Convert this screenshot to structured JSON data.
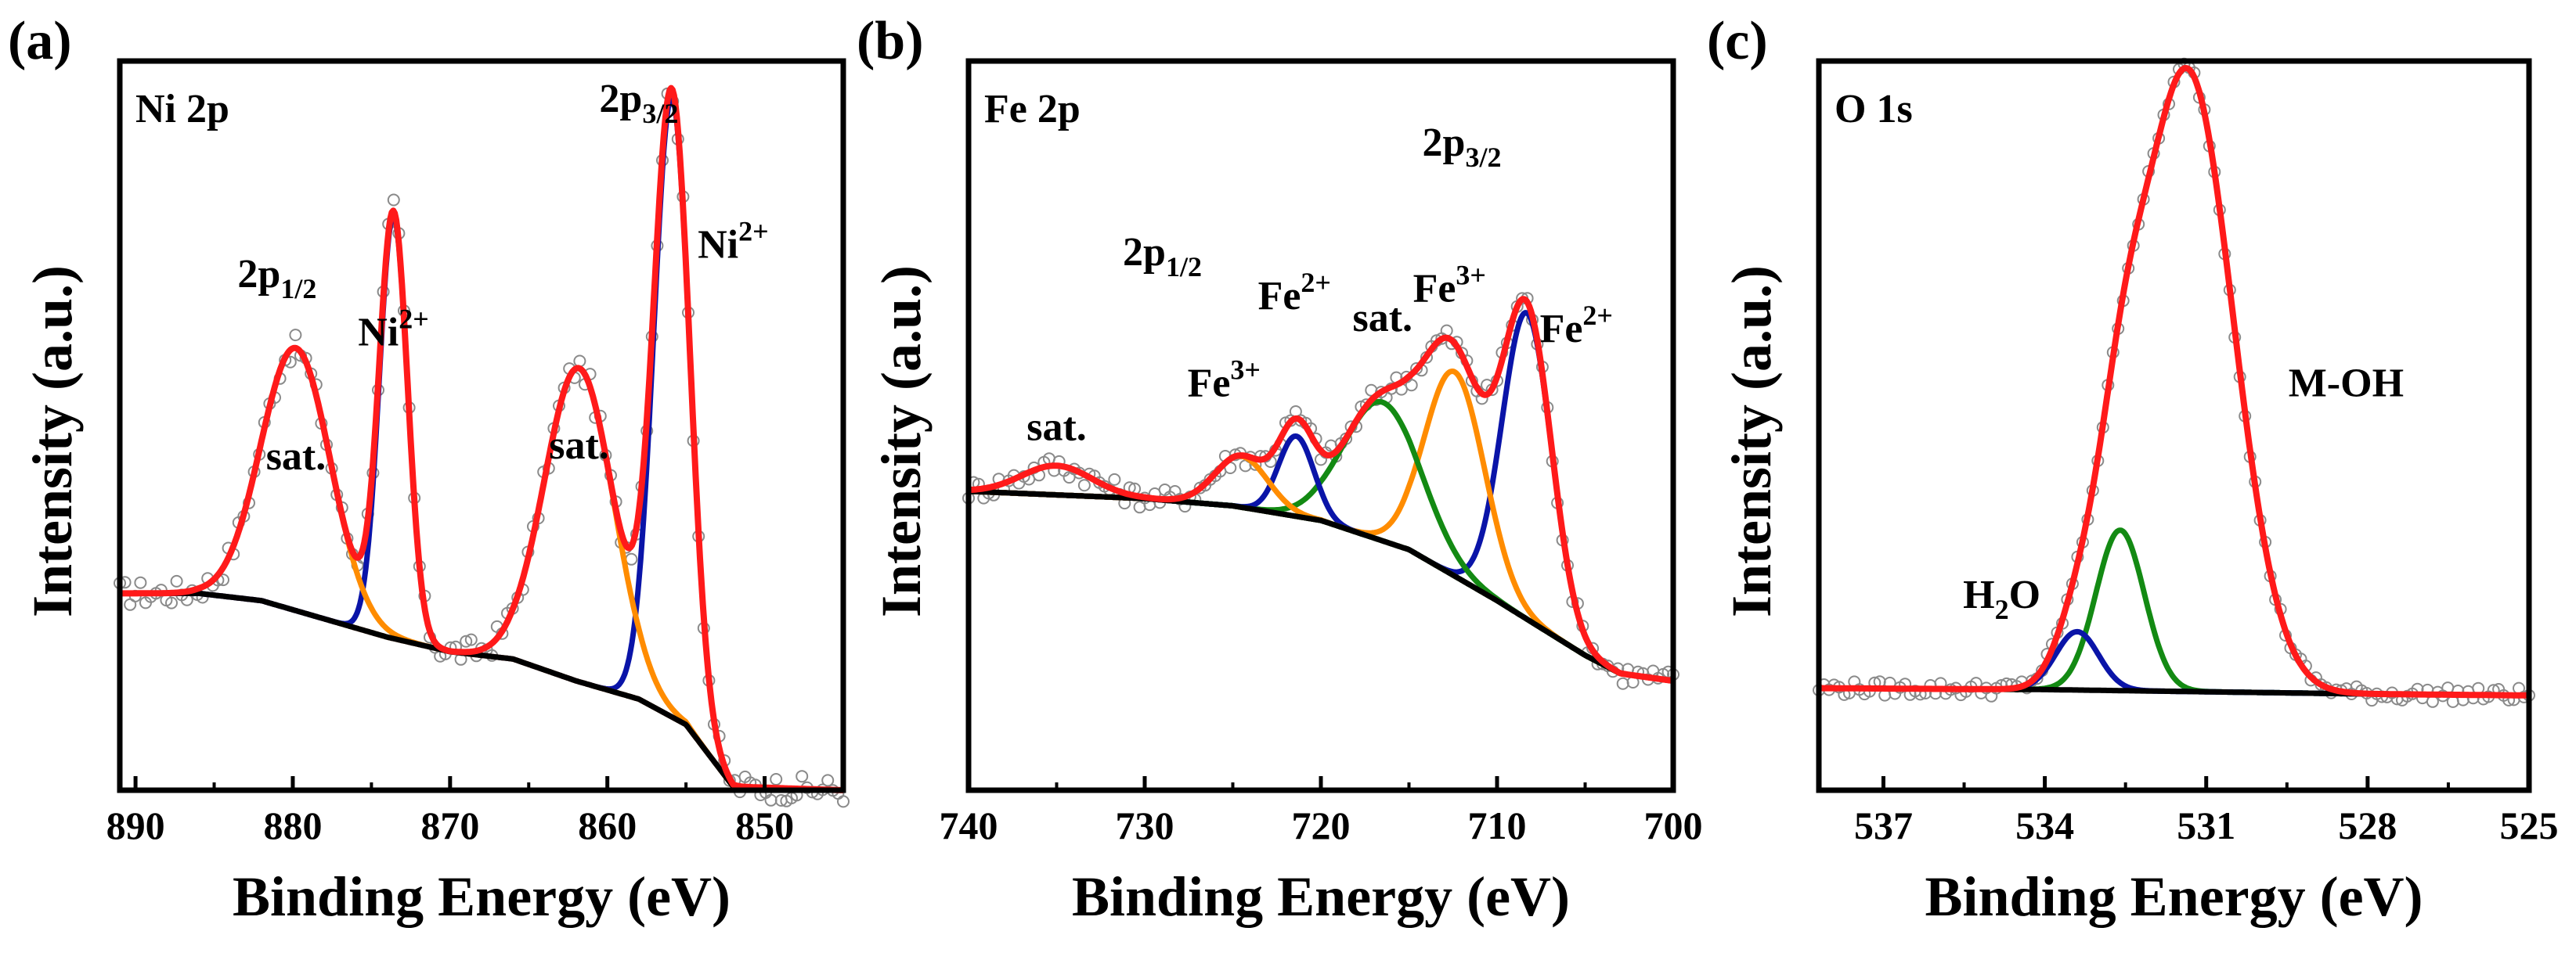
{
  "figure": {
    "description_hidden": false
  },
  "colors": {
    "raw": "#8a8a8a",
    "envelope": "#ff1a1a",
    "background": "#000000",
    "blue": "#0a14a8",
    "orange": "#ff8c00",
    "green": "#138a13"
  },
  "chart_data": [
    {
      "type": "line",
      "panel_label": "(a)",
      "element_label": "Ni 2p",
      "xlabel": "Binding Energy (eV)",
      "ylabel": "Intensity (a.u.)",
      "xlim": [
        891,
        845
      ],
      "ylim": [
        0,
        100
      ],
      "xticks": [
        890,
        880,
        870,
        860,
        850
      ],
      "xtick_labels": [
        "890",
        "880",
        "870",
        "860",
        "850"
      ],
      "background": [
        [
          891,
          27
        ],
        [
          886,
          27
        ],
        [
          882,
          26
        ],
        [
          878,
          23.5
        ],
        [
          874,
          21
        ],
        [
          870,
          19
        ],
        [
          866,
          18
        ],
        [
          862,
          15
        ],
        [
          858,
          12.5
        ],
        [
          855,
          9
        ],
        [
          852,
          0.5
        ],
        [
          845,
          0
        ]
      ],
      "peaks": [
        {
          "name": "Ni2+ 2p3/2",
          "center": 855.9,
          "height": 85,
          "sigma": 1.15,
          "color": "blue"
        },
        {
          "name": "sat. 2p3/2",
          "center": 861.8,
          "height": 43,
          "sigma": 2.2,
          "color": "orange"
        },
        {
          "name": "Ni2+ 2p1/2",
          "center": 873.6,
          "height": 58,
          "sigma": 0.9,
          "color": "blue"
        },
        {
          "name": "sat. 2p1/2",
          "center": 879.8,
          "height": 36,
          "sigma": 2.2,
          "color": "orange"
        }
      ],
      "noise": 1.8,
      "annotations": [
        {
          "text": "2p",
          "sub": "1/2",
          "x": 881,
          "y": 69
        },
        {
          "text": "Ni",
          "sup": "2+",
          "x": 873.6,
          "y": 61
        },
        {
          "text": "sat.",
          "x": 879.8,
          "y": 44
        },
        {
          "text": "2p",
          "sub": "3/2",
          "x": 858,
          "y": 93
        },
        {
          "text": "Ni",
          "sup": "2+",
          "x": 852,
          "y": 73
        },
        {
          "text": "sat.",
          "x": 861.8,
          "y": 45.5
        }
      ]
    },
    {
      "type": "line",
      "panel_label": "(b)",
      "element_label": "Fe 2p",
      "xlabel": "Binding Energy (eV)",
      "ylabel": "Intensity (a.u.)",
      "xlim": [
        740,
        700
      ],
      "ylim": [
        0,
        100
      ],
      "xticks": [
        740,
        730,
        720,
        710,
        700
      ],
      "xtick_labels": [
        "740",
        "730",
        "720",
        "710",
        "700"
      ],
      "background": [
        [
          740,
          41
        ],
        [
          735,
          40.5
        ],
        [
          730,
          40
        ],
        [
          725,
          39
        ],
        [
          720,
          37
        ],
        [
          715,
          33
        ],
        [
          710,
          26
        ],
        [
          705,
          18.5
        ],
        [
          703,
          16
        ],
        [
          700,
          15
        ]
      ],
      "peaks": [
        {
          "name": "Fe2+ 2p3/2",
          "center": 708.3,
          "height": 42,
          "sigma": 1.4,
          "color": "blue"
        },
        {
          "name": "Fe3+ 2p3/2",
          "center": 712.4,
          "height": 28,
          "sigma": 1.7,
          "color": "orange"
        },
        {
          "name": "sat. 2p3/2",
          "center": 716.5,
          "height": 19,
          "sigma": 2.2,
          "color": "green"
        },
        {
          "name": "Fe2+ 2p1/2",
          "center": 721.4,
          "height": 11,
          "sigma": 1.0,
          "color": "blue"
        },
        {
          "name": "Fe3+ 2p1/2",
          "center": 724.5,
          "height": 7,
          "sigma": 1.5,
          "color": "orange"
        },
        {
          "name": "sat. 2p1/2",
          "center": 735.0,
          "height": 4,
          "sigma": 2.0,
          "color": "green"
        }
      ],
      "noise": 1.5,
      "annotations": [
        {
          "text": "2p",
          "sub": "3/2",
          "x": 712,
          "y": 87
        },
        {
          "text": "2p",
          "sub": "1/2",
          "x": 729,
          "y": 72
        },
        {
          "text": "sat.",
          "x": 735,
          "y": 48
        },
        {
          "text": "Fe",
          "sup": "3+",
          "x": 725.5,
          "y": 54
        },
        {
          "text": "Fe",
          "sup": "2+",
          "x": 721.5,
          "y": 66
        },
        {
          "text": "sat.",
          "x": 716.5,
          "y": 63
        },
        {
          "text": "Fe",
          "sup": "3+",
          "x": 712.7,
          "y": 67
        },
        {
          "text": "Fe",
          "sup": "2+",
          "x": 705.5,
          "y": 61.5
        }
      ]
    },
    {
      "type": "line",
      "panel_label": "(c)",
      "element_label": "O 1s",
      "xlabel": "Binding Energy (eV)",
      "ylabel": "Intensity (a.u.)",
      "xlim": [
        538.2,
        525
      ],
      "ylim": [
        0,
        100
      ],
      "xticks": [
        537,
        534,
        531,
        528,
        525
      ],
      "xtick_labels": [
        "537",
        "534",
        "531",
        "528",
        "525"
      ],
      "background": [
        [
          538.2,
          14
        ],
        [
          534,
          13.8
        ],
        [
          531,
          13.5
        ],
        [
          528,
          13.2
        ],
        [
          525,
          13
        ]
      ],
      "peaks": [
        {
          "name": "M-OH",
          "center": 531.35,
          "height": 85,
          "sigma": 0.85,
          "color": "envelope"
        },
        {
          "name": "green",
          "center": 532.6,
          "height": 22,
          "sigma": 0.45,
          "color": "green"
        },
        {
          "name": "H2O",
          "center": 533.4,
          "height": 8,
          "sigma": 0.4,
          "color": "blue"
        }
      ],
      "noise": 1.0,
      "annotations": [
        {
          "text": "H",
          "sub": "2",
          "tail": "O",
          "x": 534.8,
          "y": 25
        },
        {
          "text": "M-OH",
          "x": 528.4,
          "y": 54
        }
      ]
    }
  ]
}
